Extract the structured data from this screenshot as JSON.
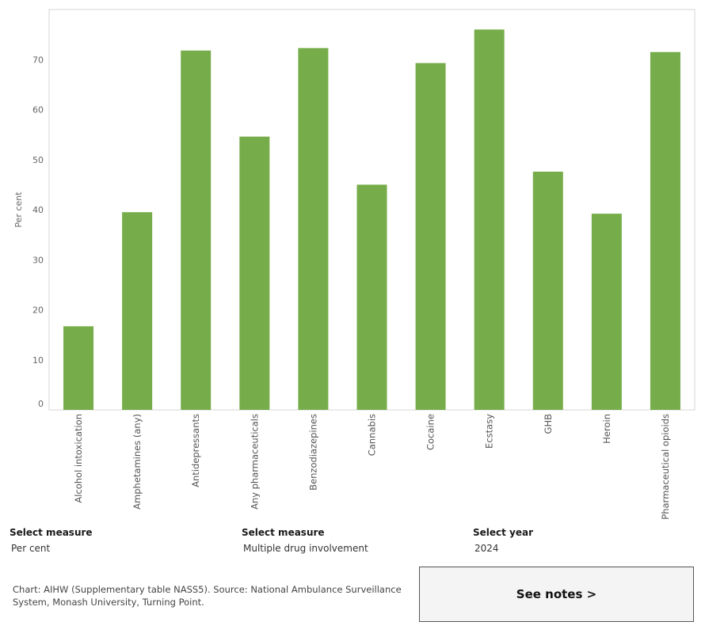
{
  "chart_data": {
    "type": "bar",
    "title": "",
    "xlabel": "",
    "ylabel": "Per cent",
    "ylim": [
      0,
      80
    ],
    "yticks": [
      0,
      10,
      20,
      30,
      40,
      50,
      60,
      70
    ],
    "grid": false,
    "color": "#76ad4a",
    "categories": [
      "Alcohol intoxication",
      "Amphetamines (any)",
      "Antidepressants",
      "Any pharmaceuticals",
      "Benzodiazepines",
      "Cannabis",
      "Cocaine",
      "Ecstasy",
      "GHB",
      "Heroin",
      "Pharmaceutical opioids"
    ],
    "values": [
      16.7,
      39.5,
      71.8,
      54.6,
      72.3,
      45.0,
      69.3,
      76.0,
      47.6,
      39.2,
      71.5
    ]
  },
  "filters": [
    {
      "label": "Select measure",
      "value": "Per cent"
    },
    {
      "label": "Select measure",
      "value": "Multiple drug involvement"
    },
    {
      "label": "Select year",
      "value": "2024"
    }
  ],
  "source": "Chart: AIHW (Supplementary table NASS5). Source: National Ambulance Surveillance System, Monash University, Turning Point.",
  "notes_button": "See notes >"
}
